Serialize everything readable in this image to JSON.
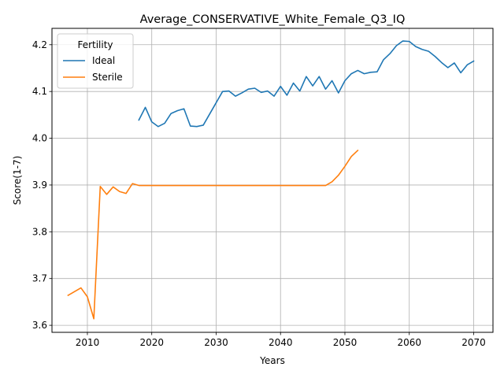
{
  "chart_data": {
    "type": "line",
    "title": "Average_CONSERVATIVE_White_Female_Q3_IQ",
    "xlabel": "Years",
    "ylabel": "Score(1-7)",
    "xlim": [
      2004.5,
      2073
    ],
    "ylim": [
      3.585,
      4.235
    ],
    "xticks": [
      2010,
      2020,
      2030,
      2040,
      2050,
      2060,
      2070
    ],
    "yticks": [
      3.6,
      3.7,
      3.8,
      3.9,
      4.0,
      4.1,
      4.2
    ],
    "grid": true,
    "legend": {
      "title": "Fertility",
      "placement": "top-left"
    },
    "series": [
      {
        "name": "Ideal",
        "color": "#1f77b4",
        "x": [
          2018,
          2019,
          2020,
          2021,
          2022,
          2023,
          2024,
          2025,
          2026,
          2027,
          2028,
          2029,
          2030,
          2031,
          2032,
          2033,
          2034,
          2035,
          2036,
          2037,
          2038,
          2039,
          2040,
          2041,
          2042,
          2043,
          2044,
          2045,
          2046,
          2047,
          2048,
          2049,
          2050,
          2051,
          2052,
          2053,
          2054,
          2055,
          2056,
          2057,
          2058,
          2059,
          2060,
          2061,
          2062,
          2063,
          2064,
          2065,
          2066,
          2067,
          2068,
          2069,
          2070
        ],
        "values": [
          4.039,
          4.066,
          4.035,
          4.025,
          4.032,
          4.053,
          4.059,
          4.063,
          4.026,
          4.025,
          4.028,
          4.052,
          4.076,
          4.1,
          4.101,
          4.09,
          4.097,
          4.105,
          4.107,
          4.098,
          4.101,
          4.09,
          4.111,
          4.092,
          4.118,
          4.101,
          4.132,
          4.112,
          4.132,
          4.105,
          4.123,
          4.097,
          4.123,
          4.138,
          4.145,
          4.138,
          4.141,
          4.142,
          4.168,
          4.181,
          4.198,
          4.208,
          4.207,
          4.196,
          4.19,
          4.186,
          4.175,
          4.162,
          4.151,
          4.161,
          4.14,
          4.157,
          4.165
        ]
      },
      {
        "name": "Sterile",
        "color": "#ff7f0e",
        "x": [
          2007,
          2008,
          2009,
          2010,
          2011,
          2012,
          2013,
          2014,
          2015,
          2016,
          2017,
          2018,
          2019,
          2020,
          2021,
          2022,
          2023,
          2024,
          2025,
          2026,
          2027,
          2028,
          2029,
          2030,
          2031,
          2032,
          2033,
          2034,
          2035,
          2036,
          2037,
          2038,
          2039,
          2040,
          2041,
          2042,
          2043,
          2044,
          2045,
          2046,
          2047,
          2048,
          2049,
          2050,
          2051,
          2052
        ],
        "values": [
          3.664,
          3.672,
          3.68,
          3.661,
          3.614,
          3.897,
          3.88,
          3.896,
          3.886,
          3.882,
          3.903,
          3.899,
          3.899,
          3.899,
          3.899,
          3.899,
          3.899,
          3.899,
          3.899,
          3.899,
          3.899,
          3.899,
          3.899,
          3.899,
          3.899,
          3.899,
          3.899,
          3.899,
          3.899,
          3.899,
          3.899,
          3.899,
          3.899,
          3.899,
          3.899,
          3.899,
          3.899,
          3.899,
          3.899,
          3.899,
          3.899,
          3.907,
          3.921,
          3.94,
          3.961,
          3.974
        ]
      }
    ]
  }
}
